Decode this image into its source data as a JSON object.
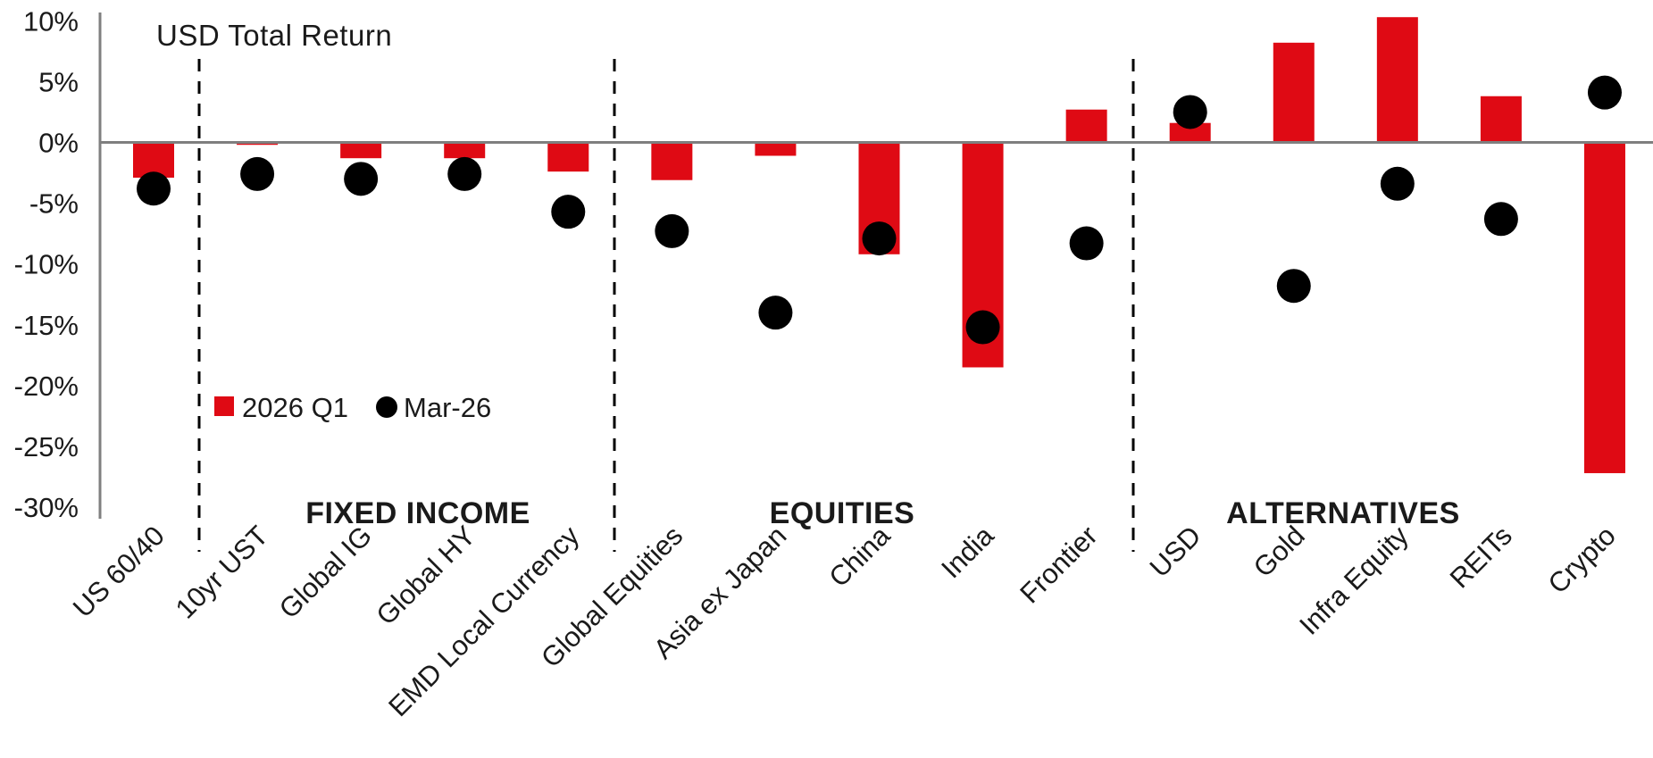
{
  "chart_data": {
    "type": "bar",
    "title": "USD Total Return",
    "xlabel": "",
    "ylabel": "",
    "ylim": [
      -30,
      10
    ],
    "grid": false,
    "legend_position": "middle-left",
    "y_ticks": [
      10,
      5,
      0,
      -5,
      -10,
      -15,
      -20,
      -25,
      -30
    ],
    "y_tick_suffix": "%",
    "categories": [
      "US 60/40",
      "10yr UST",
      "Global IG",
      "Global HY",
      "EMD Local Currency",
      "Global Equities",
      "Asia ex Japan",
      "China",
      "India",
      "Frontier",
      "USD",
      "Gold",
      "Infra Equity",
      "REITs",
      "Crypto"
    ],
    "series": [
      {
        "name": "2026 Q1",
        "type": "bar",
        "color": "#DF0A14",
        "values": [
          -2.9,
          -0.2,
          -1.3,
          -1.3,
          -2.4,
          -3.1,
          -1.1,
          -9.2,
          -18.5,
          2.7,
          1.6,
          8.2,
          10.3,
          3.8,
          -27.2
        ]
      },
      {
        "name": "Mar-26",
        "type": "scatter",
        "color": "#000000",
        "values": [
          -3.8,
          -2.6,
          -3.0,
          -2.6,
          -5.7,
          -7.3,
          -14.0,
          -7.9,
          -15.2,
          -8.3,
          2.5,
          -11.8,
          -3.4,
          -6.3,
          4.1
        ]
      }
    ],
    "groups": [
      {
        "label": "FIXED INCOME",
        "from": 1,
        "to": 4
      },
      {
        "label": "EQUITIES",
        "from": 5,
        "to": 9
      },
      {
        "label": "ALTERNATIVES",
        "from": 10,
        "to": 14
      }
    ],
    "separators_after_category": [
      0,
      4,
      9
    ],
    "colors": {
      "bar": "#DF0A14",
      "dot": "#000000",
      "axis_line": "#7F7F7F",
      "separator": "#000000",
      "group_label": "#AE3C52",
      "text": "#1A1A1A"
    }
  }
}
